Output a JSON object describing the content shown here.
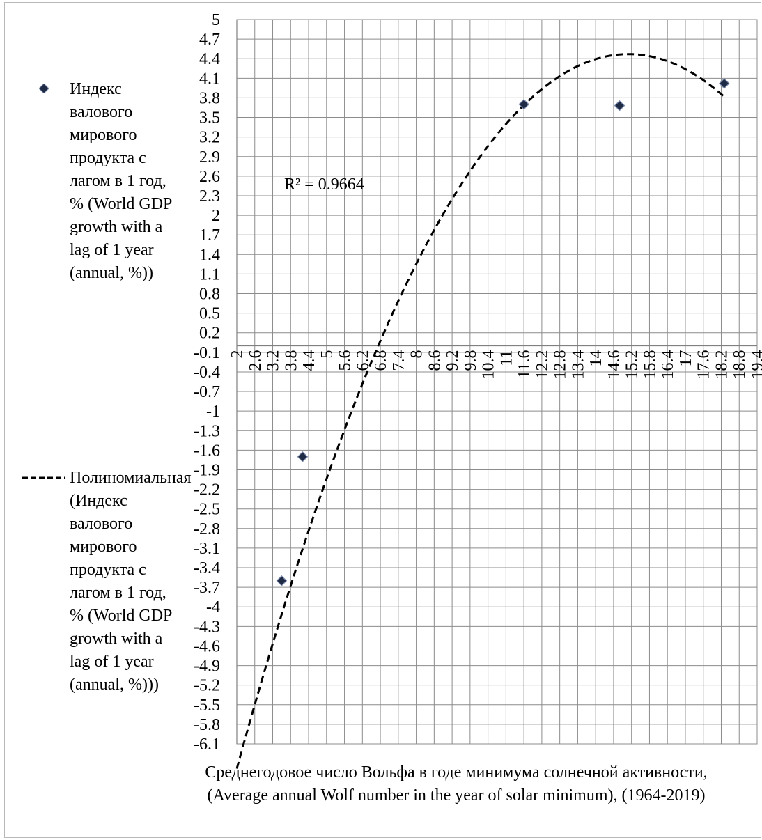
{
  "chart_data": {
    "type": "scatter",
    "xlabel": "Среднегодовое число Вольфа в годе минимума солнечной активности, (Average annual Wolf number in the year of solar minimum), (1964-2019)",
    "ylabel": "",
    "xlim": [
      2,
      19.4
    ],
    "ylim": [
      -6.1,
      5
    ],
    "x_ticks": [
      "2",
      "2.6",
      "3.2",
      "3.8",
      "4.4",
      "5",
      "5.6",
      "6.2",
      "6.8",
      "7.4",
      "8",
      "8.6",
      "9.2",
      "9.8",
      "10.4",
      "11",
      "11.6",
      "12.2",
      "12.8",
      "13.4",
      "14",
      "14.6",
      "15.2",
      "15.8",
      "16.4",
      "17",
      "17.6",
      "18.2",
      "18.8",
      "19.4"
    ],
    "y_ticks": [
      "5",
      "4.7",
      "4.4",
      "4.1",
      "3.8",
      "3.5",
      "3.2",
      "2.9",
      "2.6",
      "2.3",
      "2",
      "1.7",
      "1.4",
      "1.1",
      "0.8",
      "0.5",
      "0.2",
      "-0.1",
      "-0.4",
      "-0.7",
      "-1",
      "-1.3",
      "-1.6",
      "-1.9",
      "-2.2",
      "-2.5",
      "-2.8",
      "-3.1",
      "-3.4",
      "-3.7",
      "-4",
      "-4.3",
      "-4.6",
      "-4.9",
      "-5.2",
      "-5.5",
      "-5.8",
      "-6.1"
    ],
    "grid": true,
    "legend_position": "left",
    "series": [
      {
        "name": "Индекс валового мирового продукта с лагом в 1 год, % (World GDP growth with a lag of 1 year (annual, %))",
        "marker": "diamond",
        "color": "#1f2a44",
        "points": [
          {
            "x": 3.5,
            "y": -3.6
          },
          {
            "x": 4.2,
            "y": -1.7
          },
          {
            "x": 11.6,
            "y": 3.7
          },
          {
            "x": 14.8,
            "y": 3.68
          },
          {
            "x": 18.3,
            "y": 4.02
          }
        ]
      },
      {
        "name": "Полиномиальная (Индекс валового мирового продукта с лагом в 1 год, % (World GDP growth with a lag of 1 year (annual, %)))",
        "style": "dashed",
        "color": "#000000",
        "fit": {
          "degree": 2,
          "vertex_x": 15.1,
          "vertex_y": 4.47,
          "a": -0.0638
        },
        "x_range": [
          2,
          18.3
        ]
      }
    ],
    "annotations": [
      {
        "text": "R² = 0.9664"
      }
    ]
  },
  "legend": {
    "scatter_label": "Индекс валового мирового продукта с лагом в 1 год, % (World GDP growth with a lag of 1 year (annual, %))",
    "trend_label": "Полиномиальная (Индекс валового мирового продукта с лагом в 1 год, % (World GDP growth with a lag of 1 year (annual, %)))"
  }
}
